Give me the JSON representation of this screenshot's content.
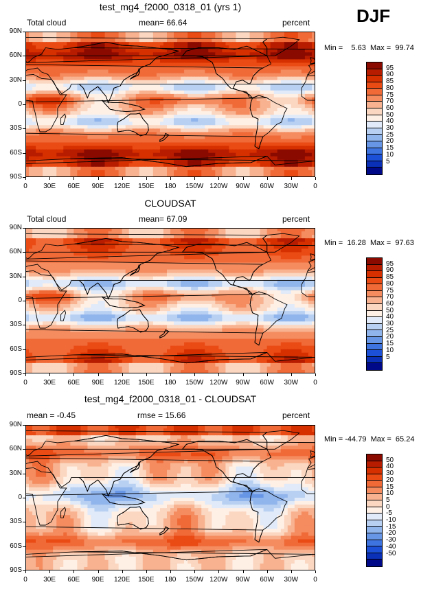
{
  "season": "DJF",
  "latitude_labels": [
    "90N",
    "60N",
    "30N",
    "0",
    "30S",
    "60S",
    "90S"
  ],
  "longitude_labels": [
    "0",
    "30E",
    "60E",
    "90E",
    "120E",
    "150E",
    "180",
    "150W",
    "120W",
    "90W",
    "60W",
    "30W",
    "0"
  ],
  "panels": [
    {
      "title": "test_mg4_f2000_0318_01 (yrs 1)",
      "left_label": "Total cloud",
      "center_label": "mean=  66.64",
      "right_label": "percent",
      "minmax": "Min =    5.63  Max =  99.74",
      "colorbar_labels": [
        "95",
        "90",
        "85",
        "80",
        "75",
        "70",
        "60",
        "50",
        "40",
        "30",
        "25",
        "20",
        "15",
        "10",
        "5"
      ]
    },
    {
      "title": "CLOUDSAT",
      "left_label": "Total cloud",
      "center_label": "mean=  67.09",
      "right_label": "percent",
      "minmax": "Min =  16.28  Max =  97.63",
      "colorbar_labels": [
        "95",
        "90",
        "85",
        "80",
        "75",
        "70",
        "60",
        "50",
        "40",
        "30",
        "25",
        "20",
        "15",
        "10",
        "5"
      ]
    },
    {
      "title": "test_mg4_f2000_0318_01 - CLOUDSAT",
      "left_label": "mean =  -0.45",
      "center_label": "rmse =  15.66",
      "right_label": "percent",
      "minmax": "Min = -44.79  Max =  65.24",
      "colorbar_labels": [
        "50",
        "40",
        "30",
        "20",
        "15",
        "10",
        "5",
        "0",
        "-5",
        "-10",
        "-15",
        "-20",
        "-30",
        "-40",
        "-50"
      ]
    }
  ],
  "colors": {
    "colorbar": [
      "#8b0a00",
      "#b81c00",
      "#d63000",
      "#ea4a14",
      "#f06a38",
      "#f48c60",
      "#f8b290",
      "#fbd6c0",
      "#fff0e6",
      "#e0eaf8",
      "#b8d0f2",
      "#90b4ec",
      "#6896e6",
      "#3e74e0",
      "#1c50d6",
      "#0a30b8",
      "#000a88"
    ],
    "ocean_base": "#f4a884",
    "coast": "#000000"
  }
}
